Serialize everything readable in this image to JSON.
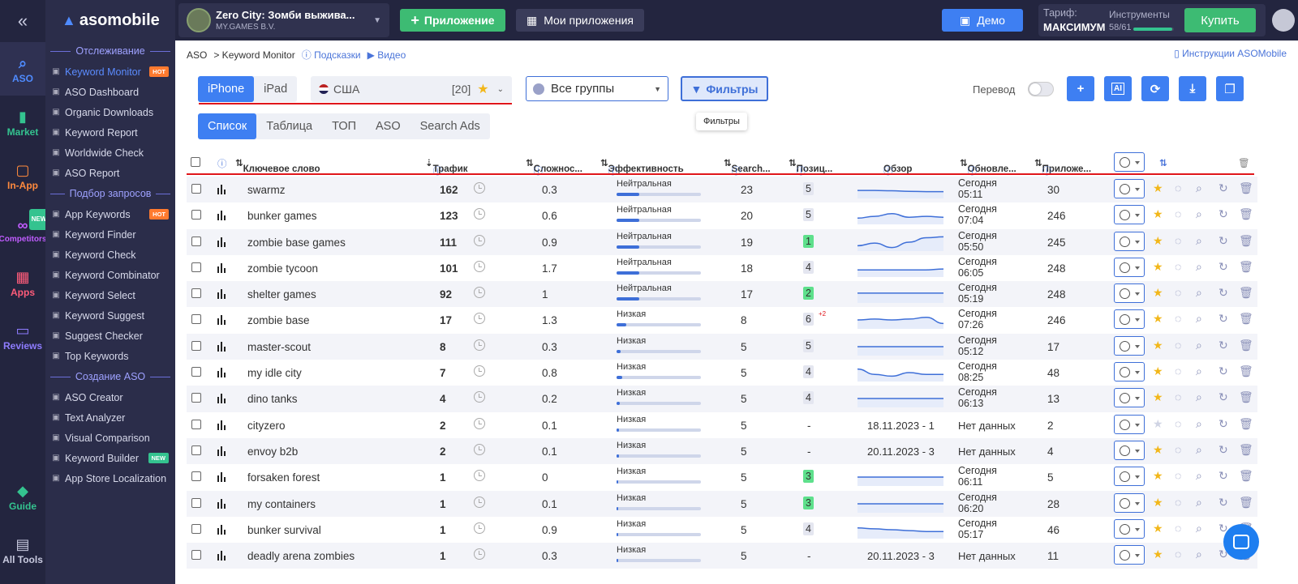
{
  "rail": {
    "items": [
      {
        "label": "ASO",
        "icon": "search-icon",
        "color": "#4f8bff"
      },
      {
        "label": "Market",
        "icon": "bar-chart-icon",
        "color": "#34c38f"
      },
      {
        "label": "In-App",
        "icon": "bag-icon",
        "color": "#ff8a3d"
      },
      {
        "label": "Competitors",
        "icon": "glasses-icon",
        "color": "#c05cff",
        "badge": "NEW"
      },
      {
        "label": "Apps",
        "icon": "grid-icon",
        "color": "#ff5c7a"
      },
      {
        "label": "Reviews",
        "icon": "chat-icon",
        "color": "#8e7cff"
      }
    ],
    "bottom": [
      {
        "label": "Guide",
        "icon": "graduation-cap-icon",
        "color": "#34c38f"
      },
      {
        "label": "All Tools",
        "icon": "list-icon",
        "color": "#c9cbe0"
      }
    ]
  },
  "sidebar": {
    "brand": "asomobile",
    "sections": [
      {
        "title": "Отслеживание",
        "items": [
          {
            "label": "Keyword Monitor",
            "active": true,
            "badge": "HOT"
          },
          {
            "label": "ASO Dashboard"
          },
          {
            "label": "Organic Downloads"
          },
          {
            "label": "Keyword Report"
          },
          {
            "label": "Worldwide Check"
          },
          {
            "label": "ASO Report"
          }
        ]
      },
      {
        "title": "Подбор запросов",
        "items": [
          {
            "label": "App Keywords",
            "badge": "HOT"
          },
          {
            "label": "Keyword Finder"
          },
          {
            "label": "Keyword Check"
          },
          {
            "label": "Keyword Combinator"
          },
          {
            "label": "Keyword Select"
          },
          {
            "label": "Keyword Suggest"
          },
          {
            "label": "Suggest Checker"
          },
          {
            "label": "Top Keywords"
          }
        ]
      },
      {
        "title": "Создание ASO",
        "items": [
          {
            "label": "ASO Creator"
          },
          {
            "label": "Text Analyzer"
          },
          {
            "label": "Visual Comparison"
          },
          {
            "label": "Keyword Builder",
            "badge": "NEW"
          },
          {
            "label": "App Store Localization"
          }
        ]
      }
    ]
  },
  "topbar": {
    "app_title": "Zero City: Зомби выжива...",
    "app_publisher": "MY.GAMES B.V.",
    "add_app": "Приложение",
    "my_apps": "Мои приложения",
    "demo": "Демо",
    "plan_label": "Тариф:",
    "plan_name": "МАКСИМУМ",
    "tools_label": "Инструменты",
    "tools_count": "58/61",
    "tools_progress": 0.95,
    "buy": "Купить"
  },
  "breadcrumb": {
    "root": "ASO",
    "current": "> Keyword Monitor",
    "hints": "Подсказки",
    "video": "Видео"
  },
  "instructions": "Инструкции ASOMobile",
  "device_tabs": [
    "iPhone",
    "iPad"
  ],
  "active_device": "iPhone",
  "country": {
    "name": "США",
    "count": "[20]"
  },
  "groups": "Все группы",
  "filters": "Фильтры",
  "filters_tooltip": "Фильтры",
  "translate_label": "Перевод",
  "view_tabs": [
    "Список",
    "Таблица",
    "ТОП",
    "ASO",
    "Search Ads"
  ],
  "active_view": "Список",
  "columns": {
    "keyword": "Ключевое слово",
    "traffic": "Трафик",
    "difficulty": "Сложнос...",
    "efficiency": "Эффективность",
    "search": "Search...",
    "position": "Позиц...",
    "overview": "Обзор",
    "updated": "Обновле...",
    "apps": "Приложе..."
  },
  "rows": [
    {
      "keyword": "swarmz",
      "traffic": "162",
      "difficulty": "0.3",
      "eff": "Нейтральная",
      "effv": 0.27,
      "search": "23",
      "pos": "5",
      "posColor": "#e4e6f0",
      "spark": [
        0.55,
        0.55,
        0.57,
        0.6,
        0.62,
        0.62
      ],
      "upd": [
        "Сегодня",
        "05:11"
      ],
      "apps": "30",
      "fav": true
    },
    {
      "keyword": "bunker games",
      "traffic": "123",
      "difficulty": "0.6",
      "eff": "Нейтральная",
      "effv": 0.27,
      "search": "20",
      "pos": "5",
      "posColor": "#e4e6f0",
      "spark": [
        0.65,
        0.55,
        0.4,
        0.6,
        0.55,
        0.6
      ],
      "upd": [
        "Сегодня",
        "07:04"
      ],
      "apps": "246",
      "fav": true
    },
    {
      "keyword": "zombie base games",
      "traffic": "111",
      "difficulty": "0.9",
      "eff": "Нейтральная",
      "effv": 0.27,
      "search": "19",
      "pos": "1",
      "posColor": "#5ee08c",
      "spark": [
        0.7,
        0.55,
        0.8,
        0.5,
        0.25,
        0.2
      ],
      "upd": [
        "Сегодня",
        "05:50"
      ],
      "apps": "245",
      "fav": true
    },
    {
      "keyword": "zombie tycoon",
      "traffic": "101",
      "difficulty": "1.7",
      "eff": "Нейтральная",
      "effv": 0.27,
      "search": "18",
      "pos": "4",
      "posColor": "#e4e6f0",
      "spark": [
        0.6,
        0.6,
        0.6,
        0.6,
        0.6,
        0.55
      ],
      "upd": [
        "Сегодня",
        "06:05"
      ],
      "apps": "248",
      "fav": true
    },
    {
      "keyword": "shelter games",
      "traffic": "92",
      "difficulty": "1",
      "eff": "Нейтральная",
      "effv": 0.27,
      "search": "17",
      "pos": "2",
      "posColor": "#5ee08c",
      "spark": [
        0.45,
        0.45,
        0.45,
        0.45,
        0.45,
        0.45
      ],
      "upd": [
        "Сегодня",
        "05:19"
      ],
      "apps": "248",
      "fav": true
    },
    {
      "keyword": "zombie base",
      "traffic": "17",
      "difficulty": "1.3",
      "eff": "Низкая",
      "effv": 0.12,
      "search": "8",
      "pos": "6",
      "posColor": "#e4e6f0",
      "posChange": "+2",
      "spark": [
        0.5,
        0.45,
        0.5,
        0.45,
        0.35,
        0.7
      ],
      "upd": [
        "Сегодня",
        "07:26"
      ],
      "apps": "246",
      "fav": true
    },
    {
      "keyword": "master-scout",
      "traffic": "8",
      "difficulty": "0.3",
      "eff": "Низкая",
      "effv": 0.05,
      "search": "5",
      "pos": "5",
      "posColor": "#e4e6f0",
      "spark": [
        0.5,
        0.5,
        0.5,
        0.5,
        0.5,
        0.5
      ],
      "upd": [
        "Сегодня",
        "05:12"
      ],
      "apps": "17",
      "fav": true
    },
    {
      "keyword": "my idle city",
      "traffic": "7",
      "difficulty": "0.8",
      "eff": "Низкая",
      "effv": 0.07,
      "search": "5",
      "pos": "4",
      "posColor": "#e4e6f0",
      "spark": [
        0.3,
        0.6,
        0.7,
        0.5,
        0.6,
        0.6
      ],
      "upd": [
        "Сегодня",
        "08:25"
      ],
      "apps": "48",
      "fav": true
    },
    {
      "keyword": "dino tanks",
      "traffic": "4",
      "difficulty": "0.2",
      "eff": "Низкая",
      "effv": 0.04,
      "search": "5",
      "pos": "4",
      "posColor": "#e4e6f0",
      "spark": [
        0.5,
        0.5,
        0.5,
        0.5,
        0.5,
        0.5
      ],
      "upd": [
        "Сегодня",
        "06:13"
      ],
      "apps": "13",
      "fav": true
    },
    {
      "keyword": "cityzero",
      "traffic": "2",
      "difficulty": "0.1",
      "eff": "Низкая",
      "effv": 0.03,
      "search": "5",
      "pos": "-",
      "overviewText": "18.11.2023 - 1",
      "updText": "Нет данных",
      "apps": "2",
      "fav": false
    },
    {
      "keyword": "envoy b2b",
      "traffic": "2",
      "difficulty": "0.1",
      "eff": "Низкая",
      "effv": 0.03,
      "search": "5",
      "pos": "-",
      "overviewText": "20.11.2023 - 3",
      "updText": "Нет данных",
      "apps": "4",
      "fav": true
    },
    {
      "keyword": "forsaken forest",
      "traffic": "1",
      "difficulty": "0",
      "eff": "Низкая",
      "effv": 0.02,
      "search": "5",
      "pos": "3",
      "posColor": "#5ee08c",
      "spark": [
        0.5,
        0.5,
        0.5,
        0.5,
        0.5,
        0.5
      ],
      "upd": [
        "Сегодня",
        "06:11"
      ],
      "apps": "5",
      "fav": true
    },
    {
      "keyword": "my containers",
      "traffic": "1",
      "difficulty": "0.1",
      "eff": "Низкая",
      "effv": 0.02,
      "search": "5",
      "pos": "3",
      "posColor": "#5ee08c",
      "spark": [
        0.5,
        0.5,
        0.5,
        0.5,
        0.5,
        0.5
      ],
      "upd": [
        "Сегодня",
        "06:20"
      ],
      "apps": "28",
      "fav": true
    },
    {
      "keyword": "bunker survival",
      "traffic": "1",
      "difficulty": "0.9",
      "eff": "Низкая",
      "effv": 0.02,
      "search": "5",
      "pos": "4",
      "posColor": "#e4e6f0",
      "spark": [
        0.4,
        0.45,
        0.5,
        0.55,
        0.6,
        0.6
      ],
      "upd": [
        "Сегодня",
        "05:17"
      ],
      "apps": "46",
      "fav": true
    },
    {
      "keyword": "deadly arena zombies",
      "traffic": "1",
      "difficulty": "0.3",
      "eff": "Низкая",
      "effv": 0.02,
      "search": "5",
      "pos": "-",
      "overviewText": "20.11.2023 - 3",
      "updText": "Нет данных",
      "apps": "11",
      "fav": true
    }
  ]
}
